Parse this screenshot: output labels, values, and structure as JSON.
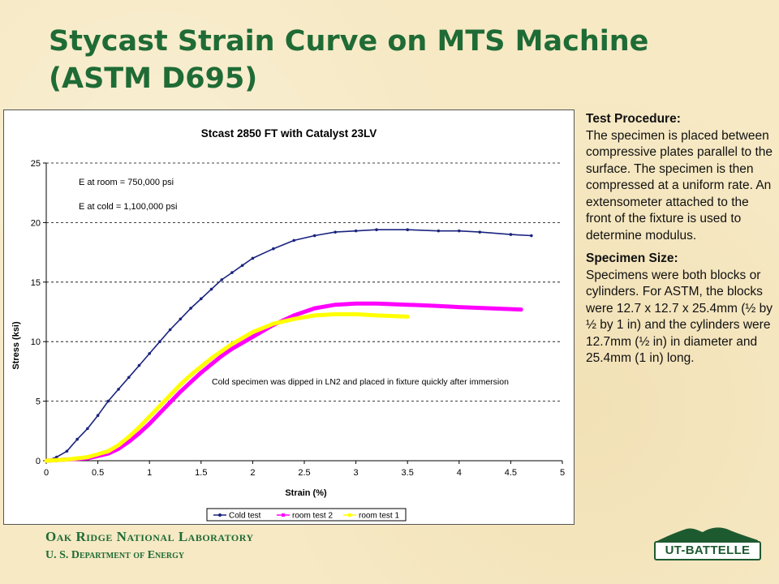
{
  "slide": {
    "title_line1": "Stycast Strain Curve on MTS Machine",
    "title_line2": "(ASTM D695)"
  },
  "side_text": {
    "procedure_heading": "Test Procedure:",
    "procedure_body": "The specimen is placed between compressive plates parallel to the surface.  The specimen is then compressed at a uniform rate. An extensometer attached to the front of the fixture is used to determine modulus.",
    "size_heading": "Specimen Size:",
    "size_body": "Specimens were both blocks or cylinders.  For ASTM, the blocks were 12.7 x 12.7 x 25.4mm (½ by ½ by 1 in) and the cylinders were 12.7mm (½ in) in diameter and 25.4mm (1 in) long."
  },
  "footer": {
    "lab_name": "Oak Ridge National Laboratory",
    "department": "U. S. Department of Energy",
    "logo_text": "UT-BATTELLE"
  },
  "colors": {
    "title_green": "#1f6b36",
    "cold": "#1a237e",
    "room2": "#ff00ff",
    "room1": "#ffff00"
  },
  "chart_data": {
    "type": "line",
    "title": "Stcast 2850 FT with Catalyst 23LV",
    "xlabel": "Strain (%)",
    "ylabel": "Stress (ksi)",
    "xlim": [
      0,
      5
    ],
    "ylim": [
      0,
      25
    ],
    "x_ticks": [
      "0",
      "0.5",
      "1",
      "1.5",
      "2",
      "2.5",
      "3",
      "3.5",
      "4",
      "4.5",
      "5"
    ],
    "y_ticks": [
      "0",
      "5",
      "10",
      "15",
      "20",
      "25"
    ],
    "grid": "horizontal dashed",
    "legend_position": "bottom",
    "annotations": [
      "E at room = 750,000 psi",
      "E at cold = 1,100,000 psi",
      "Cold specimen was dipped in LN2 and placed in fixture quickly after immersion"
    ],
    "series": [
      {
        "name": "Cold test",
        "x": [
          0,
          0.1,
          0.2,
          0.3,
          0.4,
          0.5,
          0.6,
          0.7,
          0.8,
          0.9,
          1.0,
          1.1,
          1.2,
          1.3,
          1.4,
          1.5,
          1.6,
          1.7,
          1.8,
          1.9,
          2.0,
          2.2,
          2.4,
          2.6,
          2.8,
          3.0,
          3.2,
          3.5,
          3.8,
          4.0,
          4.2,
          4.5,
          4.7
        ],
        "y": [
          0,
          0.3,
          0.8,
          1.8,
          2.7,
          3.8,
          5.0,
          6.0,
          7.0,
          8.0,
          9.0,
          10.0,
          11.0,
          11.9,
          12.8,
          13.6,
          14.4,
          15.2,
          15.8,
          16.4,
          17.0,
          17.8,
          18.5,
          18.9,
          19.2,
          19.3,
          19.4,
          19.4,
          19.3,
          19.3,
          19.2,
          19.0,
          18.9
        ]
      },
      {
        "name": "room test 2",
        "x": [
          0,
          0.2,
          0.4,
          0.6,
          0.7,
          0.8,
          0.9,
          1.0,
          1.1,
          1.2,
          1.3,
          1.4,
          1.5,
          1.6,
          1.7,
          1.8,
          1.9,
          2.0,
          2.1,
          2.2,
          2.3,
          2.4,
          2.5,
          2.6,
          2.8,
          3.0,
          3.2,
          3.5,
          3.8,
          4.0,
          4.3,
          4.6
        ],
        "y": [
          0,
          0.1,
          0.2,
          0.6,
          1.0,
          1.6,
          2.3,
          3.1,
          4.0,
          4.9,
          5.8,
          6.6,
          7.4,
          8.1,
          8.8,
          9.4,
          9.9,
          10.4,
          10.9,
          11.4,
          11.8,
          12.2,
          12.5,
          12.8,
          13.1,
          13.2,
          13.2,
          13.1,
          13.0,
          12.9,
          12.8,
          12.7
        ]
      },
      {
        "name": "room test 1",
        "x": [
          0,
          0.2,
          0.4,
          0.6,
          0.7,
          0.8,
          0.9,
          1.0,
          1.1,
          1.2,
          1.3,
          1.4,
          1.5,
          1.6,
          1.7,
          1.8,
          1.9,
          2.0,
          2.2,
          2.4,
          2.6,
          2.8,
          3.0,
          3.2,
          3.5
        ],
        "y": [
          0,
          0.1,
          0.3,
          0.8,
          1.3,
          2.0,
          2.8,
          3.7,
          4.6,
          5.5,
          6.4,
          7.2,
          7.9,
          8.6,
          9.2,
          9.8,
          10.3,
          10.8,
          11.5,
          11.9,
          12.2,
          12.3,
          12.3,
          12.2,
          12.1
        ]
      }
    ]
  }
}
